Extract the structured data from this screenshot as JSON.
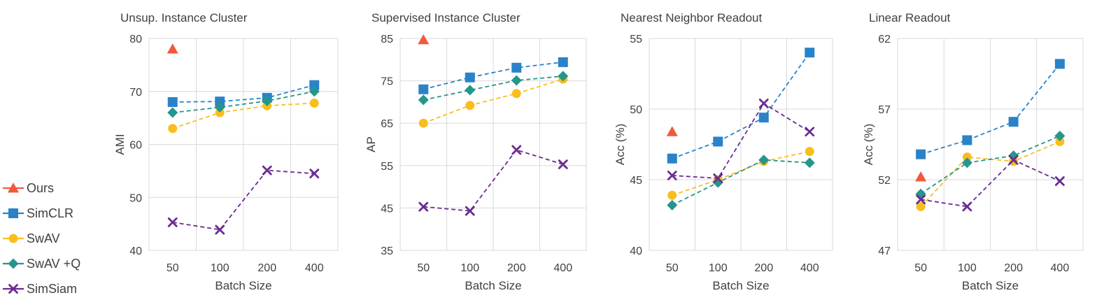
{
  "legend": [
    {
      "name": "Ours",
      "color": "#F05A3C",
      "marker": "triangle",
      "dash": false
    },
    {
      "name": "SimCLR",
      "color": "#2A83C8",
      "marker": "square",
      "dash": true
    },
    {
      "name": "SwAV",
      "color": "#F9BE1E",
      "marker": "circle",
      "dash": true
    },
    {
      "name": "SwAV +Q",
      "color": "#25968C",
      "marker": "diamond",
      "dash": true
    },
    {
      "name": "SimSiam",
      "color": "#6A2C91",
      "marker": "x",
      "dash": true
    }
  ],
  "chart_data": [
    {
      "type": "line",
      "title": "Unsup. Instance Cluster",
      "xlabel": "Batch Size",
      "ylabel": "AMI",
      "categories": [
        "50",
        "100",
        "200",
        "400"
      ],
      "ylim": [
        40,
        80
      ],
      "yticks": [
        40,
        50,
        60,
        70,
        80
      ],
      "grid": true,
      "series": [
        {
          "name": "Ours",
          "values": [
            78,
            null,
            null,
            null
          ]
        },
        {
          "name": "SimCLR",
          "values": [
            68,
            68.1,
            68.8,
            71.2
          ]
        },
        {
          "name": "SwAV",
          "values": [
            63,
            66,
            67.3,
            67.8
          ]
        },
        {
          "name": "SwAV +Q",
          "values": [
            66,
            67,
            68.2,
            70
          ]
        },
        {
          "name": "SimSiam",
          "values": [
            45.3,
            43.9,
            55.1,
            54.5
          ]
        }
      ]
    },
    {
      "type": "line",
      "title": "Supervised Instance Cluster",
      "xlabel": "Batch Size",
      "ylabel": "AP",
      "categories": [
        "50",
        "100",
        "200",
        "400"
      ],
      "ylim": [
        35,
        85
      ],
      "yticks": [
        35,
        45,
        55,
        65,
        75,
        85
      ],
      "grid": true,
      "series": [
        {
          "name": "Ours",
          "values": [
            84.7,
            null,
            null,
            null
          ]
        },
        {
          "name": "SimCLR",
          "values": [
            73,
            75.8,
            78.1,
            79.4
          ]
        },
        {
          "name": "SwAV",
          "values": [
            65,
            69.2,
            72,
            75.4
          ]
        },
        {
          "name": "SwAV +Q",
          "values": [
            70.5,
            72.8,
            75.1,
            76.1
          ]
        },
        {
          "name": "SimSiam",
          "values": [
            45.3,
            44.3,
            58.7,
            55.3
          ]
        }
      ]
    },
    {
      "type": "line",
      "title": "Nearest Neighbor Readout",
      "xlabel": "Batch Size",
      "ylabel": "Acc (%)",
      "categories": [
        "50",
        "100",
        "200",
        "400"
      ],
      "ylim": [
        40,
        55
      ],
      "yticks": [
        40,
        45,
        50,
        55
      ],
      "grid": true,
      "series": [
        {
          "name": "Ours",
          "values": [
            48.4,
            null,
            null,
            null
          ]
        },
        {
          "name": "SimCLR",
          "values": [
            46.5,
            47.7,
            49.4,
            54
          ]
        },
        {
          "name": "SwAV",
          "values": [
            43.9,
            45,
            46.3,
            47
          ]
        },
        {
          "name": "SwAV +Q",
          "values": [
            43.2,
            44.8,
            46.4,
            46.2
          ]
        },
        {
          "name": "SimSiam",
          "values": [
            45.3,
            45.1,
            50.4,
            48.4
          ]
        }
      ]
    },
    {
      "type": "line",
      "title": "Linear Readout",
      "xlabel": "Batch Size",
      "ylabel": "Acc (%)",
      "categories": [
        "50",
        "100",
        "200",
        "400"
      ],
      "ylim": [
        47,
        62
      ],
      "yticks": [
        47,
        52,
        57,
        62
      ],
      "grid": true,
      "series": [
        {
          "name": "Ours",
          "values": [
            52.2,
            null,
            null,
            null
          ]
        },
        {
          "name": "SimCLR",
          "values": [
            53.8,
            54.8,
            56.1,
            60.2
          ]
        },
        {
          "name": "SwAV",
          "values": [
            50.1,
            53.6,
            53.3,
            54.7
          ]
        },
        {
          "name": "SwAV +Q",
          "values": [
            51,
            53.2,
            53.7,
            55.1
          ]
        },
        {
          "name": "SimSiam",
          "values": [
            50.6,
            50.1,
            53.4,
            51.9
          ]
        }
      ]
    }
  ]
}
